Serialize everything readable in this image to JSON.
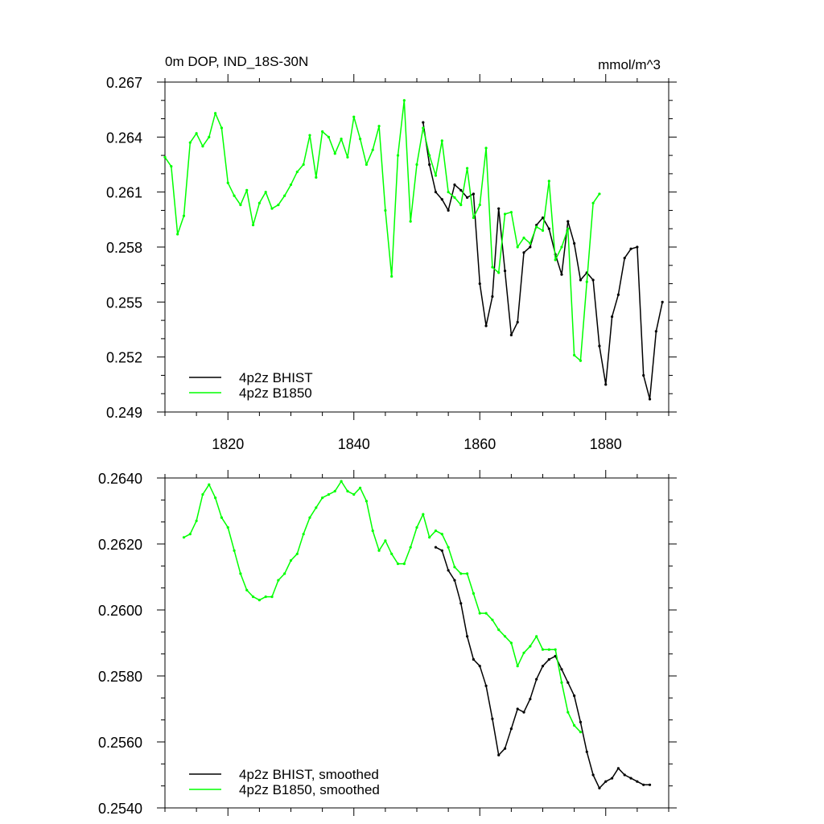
{
  "chart_data": [
    {
      "type": "line",
      "title": "0m DOP, IND_18S-30N",
      "units": "mmol/m^3",
      "xlabel": "",
      "ylabel": "",
      "xlim": [
        1810,
        1890
      ],
      "ylim": [
        0.249,
        0.267
      ],
      "xticks": [
        1820,
        1840,
        1860,
        1880
      ],
      "xtick_labels": [
        "1820",
        "1840",
        "1860",
        "1880"
      ],
      "yticks": [
        0.249,
        0.252,
        0.255,
        0.258,
        0.261,
        0.264,
        0.267
      ],
      "ytick_labels": [
        "0.249",
        "0.252",
        "0.255",
        "0.258",
        "0.261",
        "0.264",
        "0.267"
      ],
      "grid": false,
      "legend_position": "bottom-left",
      "series": [
        {
          "name": "4p2z BHIST",
          "color": "#000000",
          "x": [
            1851,
            1852,
            1853,
            1854,
            1855,
            1856,
            1857,
            1858,
            1859,
            1860,
            1861,
            1862,
            1863,
            1864,
            1865,
            1866,
            1867,
            1868,
            1869,
            1870,
            1871,
            1872,
            1873,
            1874,
            1875,
            1876,
            1877,
            1878,
            1879,
            1880,
            1881,
            1882,
            1883,
            1884,
            1885,
            1886,
            1887,
            1888,
            1889
          ],
          "y": [
            0.2648,
            0.2625,
            0.261,
            0.2606,
            0.26,
            0.2614,
            0.2611,
            0.2607,
            0.2609,
            0.256,
            0.2537,
            0.2553,
            0.2601,
            0.2567,
            0.2532,
            0.2539,
            0.2577,
            0.258,
            0.2592,
            0.2596,
            0.259,
            0.2576,
            0.2565,
            0.2594,
            0.2582,
            0.2562,
            0.2566,
            0.2562,
            0.2526,
            0.2505,
            0.2542,
            0.2554,
            0.2574,
            0.2579,
            0.258,
            0.251,
            0.2497,
            0.2534,
            0.255
          ]
        },
        {
          "name": "4p2z B1850",
          "color": "#00ff00",
          "x": [
            1810,
            1811,
            1812,
            1813,
            1814,
            1815,
            1816,
            1817,
            1818,
            1819,
            1820,
            1821,
            1822,
            1823,
            1824,
            1825,
            1826,
            1827,
            1828,
            1829,
            1830,
            1831,
            1832,
            1833,
            1834,
            1835,
            1836,
            1837,
            1838,
            1839,
            1840,
            1841,
            1842,
            1843,
            1844,
            1845,
            1846,
            1847,
            1848,
            1849,
            1850,
            1851,
            1852,
            1853,
            1854,
            1855,
            1856,
            1857,
            1858,
            1859,
            1860,
            1861,
            1862,
            1863,
            1864,
            1865,
            1866,
            1867,
            1868,
            1869,
            1870,
            1871,
            1872,
            1873,
            1874,
            1875,
            1876,
            1877,
            1878,
            1879
          ],
          "y": [
            0.2629,
            0.2624,
            0.2587,
            0.2597,
            0.2637,
            0.2642,
            0.2635,
            0.264,
            0.2653,
            0.2645,
            0.2615,
            0.2608,
            0.2603,
            0.2611,
            0.2592,
            0.2604,
            0.261,
            0.2601,
            0.2603,
            0.2608,
            0.2614,
            0.2621,
            0.2625,
            0.2641,
            0.2618,
            0.2643,
            0.264,
            0.2631,
            0.2639,
            0.2629,
            0.2651,
            0.2639,
            0.2625,
            0.2633,
            0.2646,
            0.26,
            0.2564,
            0.263,
            0.266,
            0.2594,
            0.2625,
            0.2645,
            0.263,
            0.2619,
            0.2638,
            0.261,
            0.2607,
            0.2603,
            0.2623,
            0.2596,
            0.2603,
            0.2634,
            0.2569,
            0.2566,
            0.2598,
            0.2599,
            0.258,
            0.2585,
            0.2582,
            0.2591,
            0.2589,
            0.2616,
            0.2573,
            0.258,
            0.259,
            0.2521,
            0.2518,
            0.2561,
            0.2604,
            0.2609
          ]
        }
      ]
    },
    {
      "type": "line",
      "title": "",
      "xlabel": "",
      "ylabel": "",
      "xlim": [
        1810,
        1890
      ],
      "ylim": [
        0.254,
        0.264
      ],
      "xticks": [
        1820,
        1840,
        1860,
        1880
      ],
      "yticks": [
        0.254,
        0.256,
        0.258,
        0.26,
        0.262,
        0.264
      ],
      "ytick_labels": [
        "0.2540",
        "0.2560",
        "0.2580",
        "0.2600",
        "0.2620",
        "0.2640"
      ],
      "grid": false,
      "legend_position": "bottom-left",
      "series": [
        {
          "name": "4p2z BHIST, smoothed",
          "color": "#000000",
          "x": [
            1853,
            1854,
            1855,
            1856,
            1857,
            1858,
            1859,
            1860,
            1861,
            1862,
            1863,
            1864,
            1865,
            1866,
            1867,
            1868,
            1869,
            1870,
            1871,
            1872,
            1873,
            1874,
            1875,
            1876,
            1877,
            1878,
            1879,
            1880,
            1881,
            1882,
            1883,
            1884,
            1885,
            1886,
            1887
          ],
          "y": [
            0.2619,
            0.2618,
            0.2612,
            0.2609,
            0.2602,
            0.2592,
            0.2585,
            0.2583,
            0.2577,
            0.2567,
            0.2556,
            0.2558,
            0.2564,
            0.257,
            0.2569,
            0.2573,
            0.2579,
            0.2583,
            0.2585,
            0.2586,
            0.2582,
            0.2578,
            0.2574,
            0.2566,
            0.2557,
            0.255,
            0.2546,
            0.2548,
            0.2549,
            0.2552,
            0.255,
            0.2549,
            0.2548,
            0.2547,
            0.2547
          ]
        },
        {
          "name": "4p2z B1850, smoothed",
          "color": "#00ff00",
          "x": [
            1813,
            1814,
            1815,
            1816,
            1817,
            1818,
            1819,
            1820,
            1821,
            1822,
            1823,
            1824,
            1825,
            1826,
            1827,
            1828,
            1829,
            1830,
            1831,
            1832,
            1833,
            1834,
            1835,
            1836,
            1837,
            1838,
            1839,
            1840,
            1841,
            1842,
            1843,
            1844,
            1845,
            1846,
            1847,
            1848,
            1849,
            1850,
            1851,
            1852,
            1853,
            1854,
            1855,
            1856,
            1857,
            1858,
            1859,
            1860,
            1861,
            1862,
            1863,
            1864,
            1865,
            1866,
            1867,
            1868,
            1869,
            1870,
            1871,
            1872,
            1873,
            1874,
            1875,
            1876
          ],
          "y": [
            0.2622,
            0.2623,
            0.2627,
            0.2635,
            0.2638,
            0.2634,
            0.2628,
            0.2625,
            0.2618,
            0.2611,
            0.2606,
            0.2604,
            0.2603,
            0.2604,
            0.2604,
            0.2609,
            0.2611,
            0.2615,
            0.2617,
            0.2623,
            0.2628,
            0.2631,
            0.2634,
            0.2635,
            0.2636,
            0.2639,
            0.2636,
            0.2635,
            0.2637,
            0.2633,
            0.2624,
            0.2618,
            0.2621,
            0.2617,
            0.2614,
            0.2614,
            0.2619,
            0.2625,
            0.2629,
            0.2622,
            0.2624,
            0.2623,
            0.2619,
            0.2613,
            0.2611,
            0.2611,
            0.2605,
            0.2599,
            0.2599,
            0.2597,
            0.2594,
            0.2592,
            0.259,
            0.2583,
            0.2587,
            0.2589,
            0.2592,
            0.2588,
            0.2588,
            0.2588,
            0.2578,
            0.2569,
            0.2565,
            0.2563
          ]
        }
      ]
    }
  ]
}
